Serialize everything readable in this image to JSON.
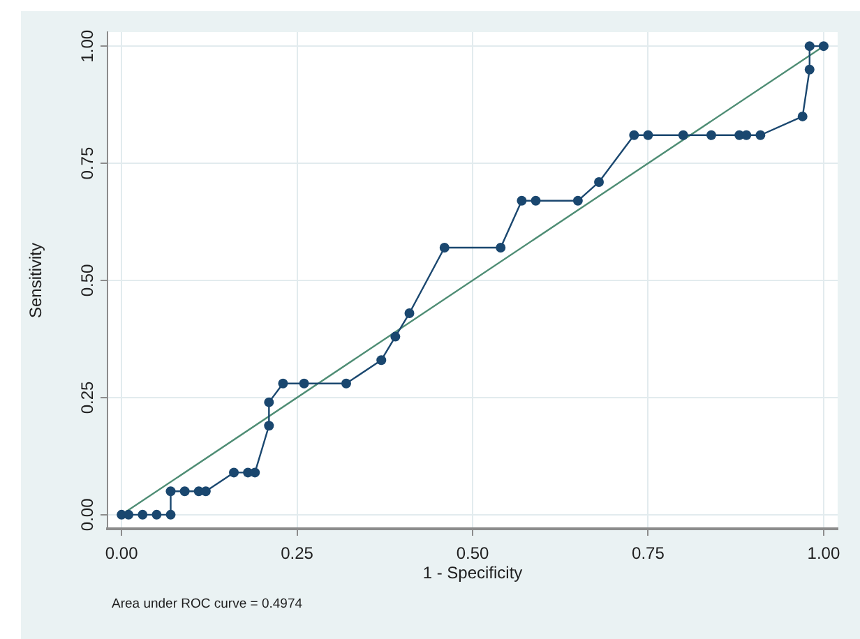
{
  "chart_data": {
    "type": "line",
    "xlabel": "1 - Specificity",
    "ylabel": "Sensitivity",
    "annotations": [
      "Area under ROC curve = 0.4974"
    ],
    "series": [
      {
        "color": "#1a476f",
        "x": [
          0,
          0.01,
          0.03,
          0.05,
          0.07,
          0.07,
          0.09,
          0.11,
          0.12,
          0.16,
          0.18,
          0.19,
          0.21,
          0.21,
          0.23,
          0.26,
          0.32,
          0.37,
          0.39,
          0.41,
          0.46,
          0.54,
          0.57,
          0.59,
          0.65,
          0.68,
          0.73,
          0.75,
          0.8,
          0.84,
          0.88,
          0.89,
          0.91,
          0.97,
          0.98,
          0.98,
          1
        ],
        "values": [
          0,
          0,
          0,
          0,
          0,
          0.05,
          0.05,
          0.05,
          0.05,
          0.09,
          0.09,
          0.09,
          0.19,
          0.24,
          0.28,
          0.28,
          0.28,
          0.33,
          0.38,
          0.43,
          0.57,
          0.57,
          0.67,
          0.67,
          0.67,
          0.71,
          0.81,
          0.81,
          0.81,
          0.81,
          0.81,
          0.81,
          0.81,
          0.85,
          0.95,
          1,
          1
        ]
      },
      {
        "color": "#4e8d74",
        "x": [
          0,
          1
        ],
        "values": [
          0,
          1
        ],
        "marker": "none"
      }
    ],
    "xlim": [
      -0.02,
      1.02
    ],
    "ylim": [
      -0.03,
      1.03
    ],
    "xticks": [
      {
        "value": 0,
        "label": "0.00"
      },
      {
        "value": 0.25,
        "label": "0.25"
      },
      {
        "value": 0.5,
        "label": "0.50"
      },
      {
        "value": 0.75,
        "label": "0.75"
      },
      {
        "value": 1,
        "label": "1.00"
      }
    ],
    "yticks": [
      {
        "value": 0,
        "label": "0.00"
      },
      {
        "value": 0.25,
        "label": "0.25"
      },
      {
        "value": 0.5,
        "label": "0.50"
      },
      {
        "value": 0.75,
        "label": "0.75"
      },
      {
        "value": 1,
        "label": "1.00"
      }
    ],
    "grid": true,
    "marker": "circle",
    "line_style": "solid"
  }
}
